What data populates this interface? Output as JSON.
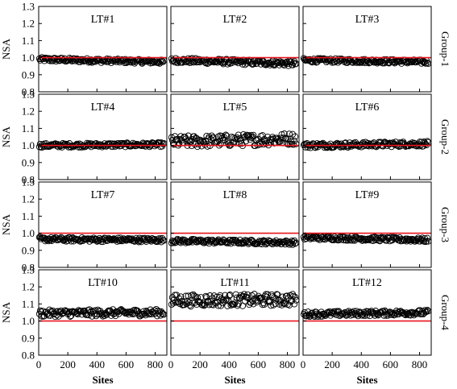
{
  "figure": {
    "y_label": "NSA",
    "x_label": "Sites",
    "group_labels": [
      "Group-1",
      "Group-2",
      "Group-3",
      "Group-4"
    ],
    "y_ticks": [
      "0.8",
      "0.9",
      "1.0",
      "1.1",
      "1.2",
      "1.3"
    ],
    "x_ticks": [
      "0",
      "200",
      "400",
      "600",
      "800"
    ],
    "reference_line_color": "#e8141c",
    "marker": "open-circle"
  },
  "chart_data": [
    {
      "type": "scatter",
      "title": "LT#1",
      "group": "Group-1",
      "xlim": [
        0,
        880
      ],
      "ylim": [
        0.8,
        1.3
      ],
      "reference_y": 1.0,
      "start": 0.99,
      "end": 0.975,
      "spread": 0.012,
      "marker_color": "#000000"
    },
    {
      "type": "scatter",
      "title": "LT#2",
      "group": "Group-1",
      "xlim": [
        0,
        880
      ],
      "ylim": [
        0.8,
        1.3
      ],
      "reference_y": 1.0,
      "start": 0.985,
      "end": 0.965,
      "spread": 0.015,
      "marker_color": "#000000"
    },
    {
      "type": "scatter",
      "title": "LT#3",
      "group": "Group-1",
      "xlim": [
        0,
        880
      ],
      "ylim": [
        0.8,
        1.3
      ],
      "reference_y": 1.0,
      "start": 0.985,
      "end": 0.975,
      "spread": 0.012,
      "marker_color": "#000000"
    },
    {
      "type": "scatter",
      "title": "LT#4",
      "group": "Group-2",
      "xlim": [
        0,
        880
      ],
      "ylim": [
        0.8,
        1.3
      ],
      "reference_y": 1.0,
      "start": 1.0,
      "end": 1.005,
      "spread": 0.012,
      "marker_color": "#000000"
    },
    {
      "type": "scatter",
      "title": "LT#5",
      "group": "Group-2",
      "xlim": [
        0,
        880
      ],
      "ylim": [
        0.8,
        1.3
      ],
      "reference_y": 1.0,
      "start": 1.02,
      "end": 1.04,
      "spread": 0.035,
      "marker_color": "#000000"
    },
    {
      "type": "scatter",
      "title": "LT#6",
      "group": "Group-2",
      "xlim": [
        0,
        880
      ],
      "ylim": [
        0.8,
        1.3
      ],
      "reference_y": 1.0,
      "start": 1.0,
      "end": 1.01,
      "spread": 0.015,
      "marker_color": "#000000"
    },
    {
      "type": "scatter",
      "title": "LT#7",
      "group": "Group-3",
      "xlim": [
        0,
        880
      ],
      "ylim": [
        0.8,
        1.3
      ],
      "reference_y": 1.0,
      "start": 0.965,
      "end": 0.96,
      "spread": 0.012,
      "marker_color": "#000000"
    },
    {
      "type": "scatter",
      "title": "LT#8",
      "group": "Group-3",
      "xlim": [
        0,
        880
      ],
      "ylim": [
        0.8,
        1.3
      ],
      "reference_y": 1.0,
      "start": 0.955,
      "end": 0.945,
      "spread": 0.012,
      "marker_color": "#000000"
    },
    {
      "type": "scatter",
      "title": "LT#9",
      "group": "Group-3",
      "xlim": [
        0,
        880
      ],
      "ylim": [
        0.8,
        1.3
      ],
      "reference_y": 1.0,
      "start": 0.975,
      "end": 0.96,
      "spread": 0.012,
      "marker_color": "#000000"
    },
    {
      "type": "scatter",
      "title": "LT#10",
      "group": "Group-4",
      "xlim": [
        0,
        880
      ],
      "ylim": [
        0.8,
        1.3
      ],
      "reference_y": 1.0,
      "start": 1.045,
      "end": 1.05,
      "spread": 0.02,
      "marker_color": "#000000"
    },
    {
      "type": "scatter",
      "title": "LT#11",
      "group": "Group-4",
      "xlim": [
        0,
        880
      ],
      "ylim": [
        0.8,
        1.3
      ],
      "reference_y": 1.0,
      "start": 1.12,
      "end": 1.125,
      "spread": 0.035,
      "marker_color": "#000000"
    },
    {
      "type": "scatter",
      "title": "LT#12",
      "group": "Group-4",
      "xlim": [
        0,
        880
      ],
      "ylim": [
        0.8,
        1.3
      ],
      "reference_y": 1.0,
      "start": 1.04,
      "end": 1.05,
      "spread": 0.015,
      "marker_color": "#000000"
    }
  ]
}
